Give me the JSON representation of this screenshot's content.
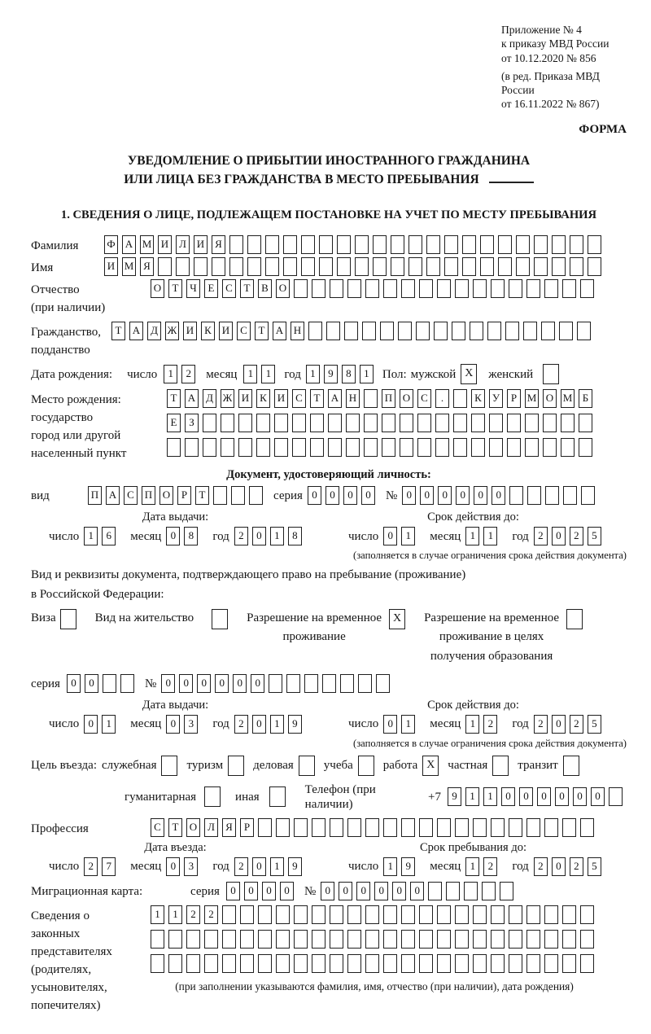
{
  "appendix": {
    "lines": [
      "Приложение № 4",
      "к приказу МВД России",
      "от 10.12.2020 № 856"
    ],
    "revision": [
      "(в ред. Приказа МВД России",
      "от 16.11.2022 № 867)"
    ]
  },
  "form_word": "ФОРМА",
  "title": {
    "line1": "УВЕДОМЛЕНИЕ О ПРИБЫТИИ ИНОСТРАННОГО ГРАЖДАНИНА",
    "line2": "ИЛИ ЛИЦА БЕЗ ГРАЖДАНСТВА В МЕСТО ПРЕБЫВАНИЯ"
  },
  "section1_title": "1. СВЕДЕНИЯ О ЛИЦЕ, ПОДЛЕЖАЩЕМ ПОСТАНОВКЕ НА УЧЕТ ПО МЕСТУ ПРЕБЫВАНИЯ",
  "labels": {
    "series": "серия",
    "number": "№",
    "day": "число",
    "month": "месяц",
    "year": "год"
  },
  "surname": {
    "label": "Фамилия",
    "cells": {
      "value": "ФАМИЛИЯ",
      "length": 28
    }
  },
  "firstname": {
    "label": "Имя",
    "cells": {
      "value": "ИМЯ",
      "length": 28
    }
  },
  "patronymic": {
    "label1": "Отчество",
    "label2": "(при наличии)",
    "cells": {
      "value": "ОТЧЕСТВО",
      "length": 25
    }
  },
  "citizenship": {
    "label1": "Гражданство,",
    "label2": "подданство",
    "cells": {
      "value": "ТАДЖИКИСТАН",
      "length": 27
    }
  },
  "birthdate": {
    "label": "Дата рождения:",
    "day": {
      "value": "12",
      "length": 2
    },
    "month": {
      "value": "11",
      "length": 2
    },
    "year": {
      "value": "1981",
      "length": 4
    },
    "sex_label": "Пол:",
    "male_label": "мужской",
    "male": "X",
    "female_label": "женский",
    "female": ""
  },
  "birthplace": {
    "labels": [
      "Место рождения:",
      "государство",
      "город или другой",
      "населенный пункт"
    ],
    "row1": {
      "value": "ТАДЖИКИСТАН ПОС. КУРМОМБ",
      "length": 24
    },
    "row2": {
      "value": "ЕЗ",
      "length": 24
    },
    "row3": {
      "value": "",
      "length": 24
    }
  },
  "identity_doc": {
    "header": "Документ, удостоверяющий личность:",
    "type_label": "вид",
    "type": {
      "value": "ПАСПОРТ",
      "length": 10
    },
    "series": {
      "value": "0000",
      "length": 4
    },
    "number": {
      "value": "000000",
      "length": 11
    },
    "issue_header": "Дата выдачи:",
    "issue": {
      "day": {
        "value": "16",
        "length": 2
      },
      "month": {
        "value": "08",
        "length": 2
      },
      "year": {
        "value": "2018",
        "length": 4
      }
    },
    "valid_header": "Срок действия до:",
    "valid": {
      "day": {
        "value": "01",
        "length": 2
      },
      "month": {
        "value": "11",
        "length": 2
      },
      "year": {
        "value": "2025",
        "length": 4
      }
    },
    "valid_note": "(заполняется в случае ограничения срока действия документа)"
  },
  "residence_doc": {
    "intro1": "Вид и реквизиты документа, подтверждающего право на пребывание (проживание)",
    "intro2": "в Российской Федерации:",
    "options": [
      {
        "lines": [
          "Виза"
        ],
        "checked": ""
      },
      {
        "lines": [
          "Вид на жительство"
        ],
        "checked": ""
      },
      {
        "lines": [
          "Разрешение на временное",
          "проживание"
        ],
        "checked": "X"
      },
      {
        "lines": [
          "Разрешение на временное",
          "проживание в целях",
          "получения образования"
        ],
        "checked": ""
      }
    ],
    "series": {
      "value": "00",
      "length": 4
    },
    "number": {
      "value": "000000",
      "length": 13
    },
    "issue_header": "Дата выдачи:",
    "issue": {
      "day": {
        "value": "01",
        "length": 2
      },
      "month": {
        "value": "03",
        "length": 2
      },
      "year": {
        "value": "2019",
        "length": 4
      }
    },
    "valid_header": "Срок действия до:",
    "valid": {
      "day": {
        "value": "01",
        "length": 2
      },
      "month": {
        "value": "12",
        "length": 2
      },
      "year": {
        "value": "2025",
        "length": 4
      }
    },
    "valid_note": "(заполняется в случае ограничения срока действия документа)"
  },
  "purpose": {
    "label": "Цель въезда:",
    "row1": [
      {
        "label": "служебная",
        "checked": ""
      },
      {
        "label": "туризм",
        "checked": ""
      },
      {
        "label": "деловая",
        "checked": ""
      },
      {
        "label": "учеба",
        "checked": ""
      },
      {
        "label": "работа",
        "checked": "X"
      },
      {
        "label": "частная",
        "checked": ""
      },
      {
        "label": "транзит",
        "checked": ""
      }
    ],
    "row2": [
      {
        "label": "гуманитарная",
        "checked": ""
      },
      {
        "label": "иная",
        "checked": ""
      }
    ],
    "phone_label": "Телефон (при наличии)",
    "phone_prefix": "+7",
    "phone": {
      "value": "911000000",
      "length": 10
    }
  },
  "profession": {
    "label": "Профессия",
    "cells": {
      "value": "СТОЛЯР",
      "length": 25
    }
  },
  "entry": {
    "date_header": "Дата въезда:",
    "date": {
      "day": {
        "value": "27",
        "length": 2
      },
      "month": {
        "value": "03",
        "length": 2
      },
      "year": {
        "value": "2019",
        "length": 4
      }
    },
    "stay_header": "Срок пребывания до:",
    "stay": {
      "day": {
        "value": "19",
        "length": 2
      },
      "month": {
        "value": "12",
        "length": 2
      },
      "year": {
        "value": "2025",
        "length": 4
      }
    }
  },
  "migration_card": {
    "label": "Миграционная карта:",
    "series": {
      "value": "0000",
      "length": 4
    },
    "number": {
      "value": "000000",
      "length": 11
    }
  },
  "representatives": {
    "labels": [
      "Сведения о",
      "законных",
      "представителях",
      "(родителях,",
      "усыновителях,",
      "попечителях)"
    ],
    "row1": {
      "value": "1122",
      "length": 25
    },
    "row2": {
      "value": "",
      "length": 25
    },
    "row3": {
      "value": "",
      "length": 25
    },
    "note": "(при заполнении указываются фамилия, имя, отчество (при наличии), дата рождения)"
  }
}
